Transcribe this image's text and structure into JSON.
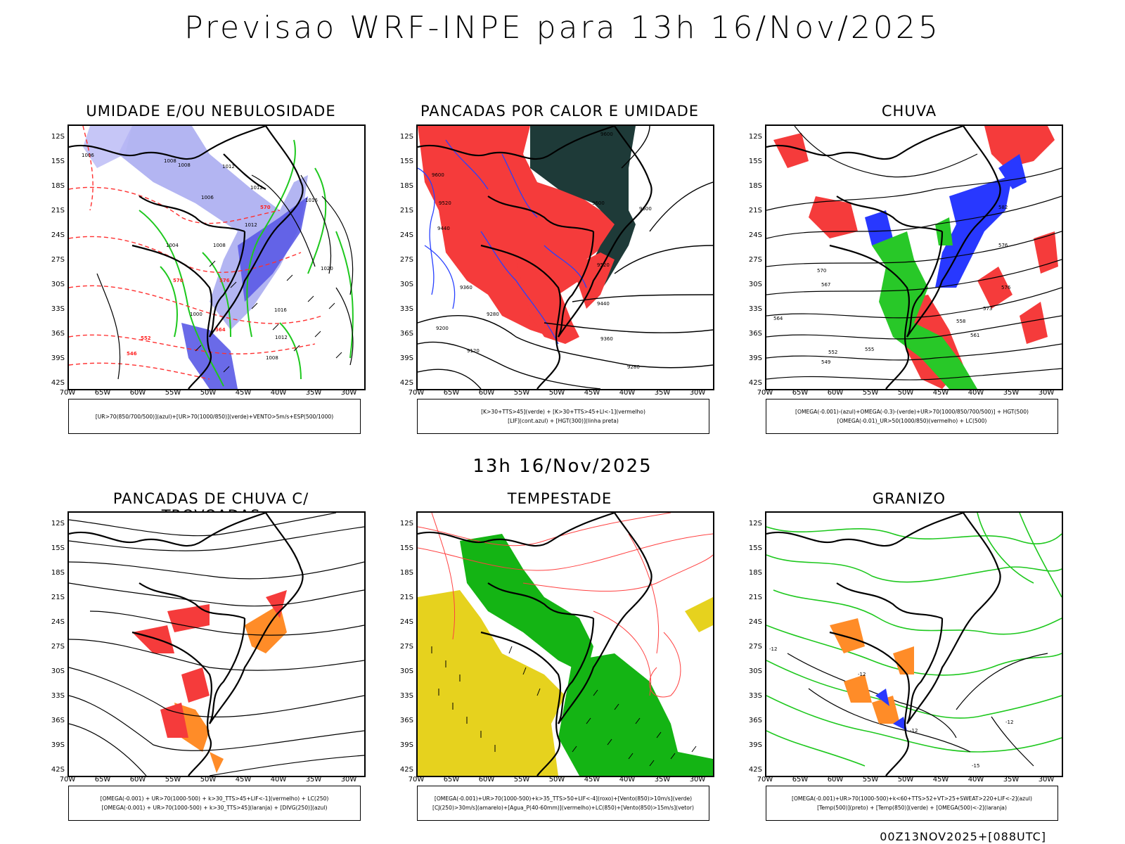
{
  "title": "Previsao WRF-INPE  para 13h 16/Nov/2025",
  "subtitle": "13h 16/Nov/2025",
  "footer": "00Z13NOV2025+[088UTC]",
  "lat_ticks": [
    "12S",
    "15S",
    "18S",
    "21S",
    "24S",
    "27S",
    "30S",
    "33S",
    "36S",
    "39S",
    "42S"
  ],
  "lon_ticks": [
    "70W",
    "65W",
    "60W",
    "55W",
    "50W",
    "45W",
    "40W",
    "35W",
    "30W"
  ],
  "panels": [
    {
      "title": "UMIDADE E/OU NEBULOSIDADE",
      "legend": [
        "[UR>70(850/700/500)](azul)+[UR>70(1000/850)](verde)+VENTO>5m/s+ESP(500/1000)"
      ],
      "labels": [
        "1006",
        "1008",
        "1008",
        "1006",
        "1012",
        "1012",
        "1016",
        "1004",
        "1008",
        "1012",
        "1020",
        "1016",
        "1012",
        "1008",
        "1000",
        "570",
        "570",
        "576",
        "564",
        "552",
        "546"
      ]
    },
    {
      "title": "PANCADAS POR CALOR E UMIDADE",
      "legend": [
        "[K>30+TTS>45](verde)  +  [K>30+TTS>45+LI<-1](vermelho)",
        "[LIF](cont.azul)  +  [HGT(300)](linha preta)"
      ],
      "labels": [
        "9600",
        "9600",
        "9600",
        "9520",
        "9440",
        "9360",
        "9280",
        "9200",
        "9120",
        "9280",
        "9520",
        "9440",
        "9360",
        "9600"
      ]
    },
    {
      "title": "CHUVA",
      "legend": [
        "[OMEGA(-0.001)-(azul)+OMEGA(-0.3)-(verde)+UR>70(1000/850/700/500)]  +  HGT(500)",
        "[OMEGA(-0.01)_UR>50(1000/850)(vermelho)  +  LC(500)"
      ],
      "labels": [
        "582",
        "576",
        "576",
        "570",
        "567",
        "564",
        "561",
        "558",
        "555",
        "552",
        "549",
        "573"
      ]
    },
    {
      "title": "PANCADAS DE CHUVA C/ TROVOADAS",
      "legend": [
        "[OMEGA(-0.001)  +  UR>70(1000-500)  +  k>30_TTS>45+LIF<-1](vermelho)  +  LC(250)",
        "[OMEGA(-0.001)  +  UR>70(1000-500)  +  k>30_TTS>45](laranja)  +  [DIVG(250)](azul)"
      ],
      "labels": []
    },
    {
      "title": "TEMPESTADE",
      "legend": [
        "[OMEGA(-0.001)+UR>70(1000-500)+k>35_TTS>50+LIF<-4](roxo)+[Vento(850)>10m/s](verde)",
        "[CJ(250)>30m/s](amarelo)+[Agua_P(40-60mm)](vermelho)+LC(850)+[Vento(850)>15m/s](vetor)"
      ],
      "labels": []
    },
    {
      "title": "GRANIZO",
      "legend": [
        "[OMEGA(-0.001)+UR>70(1000-500)+k<60+TTS>52+VT>25+SWEAT>220+LIF<-2](azul)",
        "[Temp(500)](preto)  +  [Temp(850)](verde)  +  [OMEGA(500)<-2](laranja)"
      ],
      "labels": [
        "-12",
        "-12",
        "-12",
        "-15",
        "-12"
      ]
    }
  ]
}
